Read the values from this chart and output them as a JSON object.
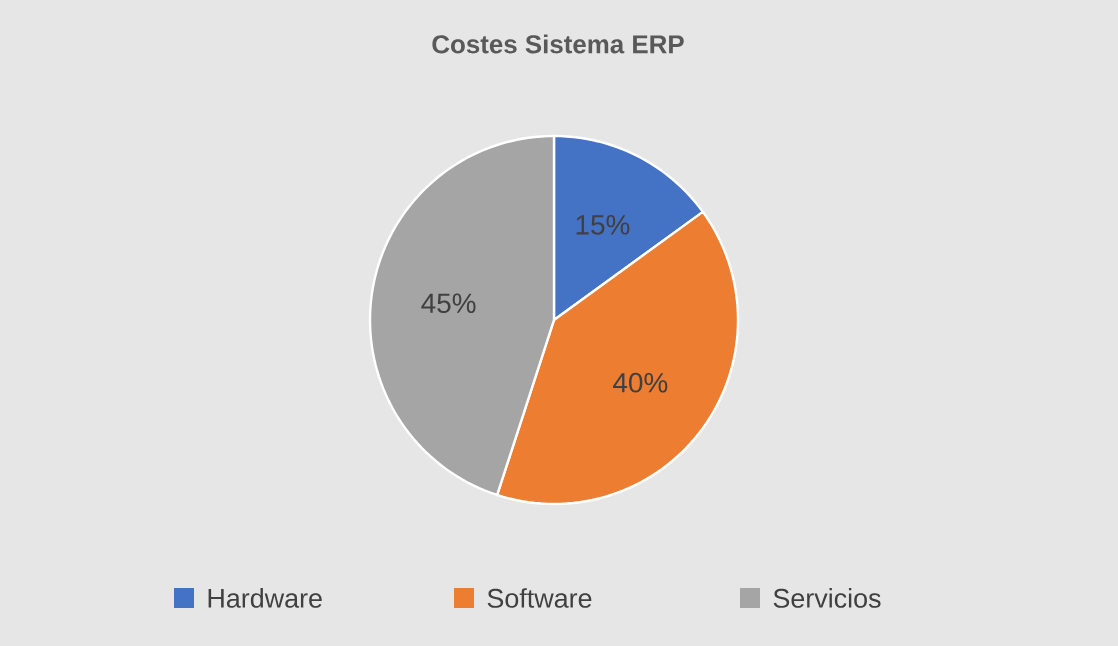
{
  "chart_data": {
    "type": "pie",
    "title": "Costes Sistema ERP",
    "categories": [
      "Hardware",
      "Software",
      "Servicios"
    ],
    "values": [
      15,
      40,
      45
    ],
    "colors": [
      "#4472c4",
      "#ed7d31",
      "#a5a5a5"
    ],
    "value_labels": [
      "15%",
      "40%",
      "45%"
    ],
    "legend": "bottom"
  }
}
